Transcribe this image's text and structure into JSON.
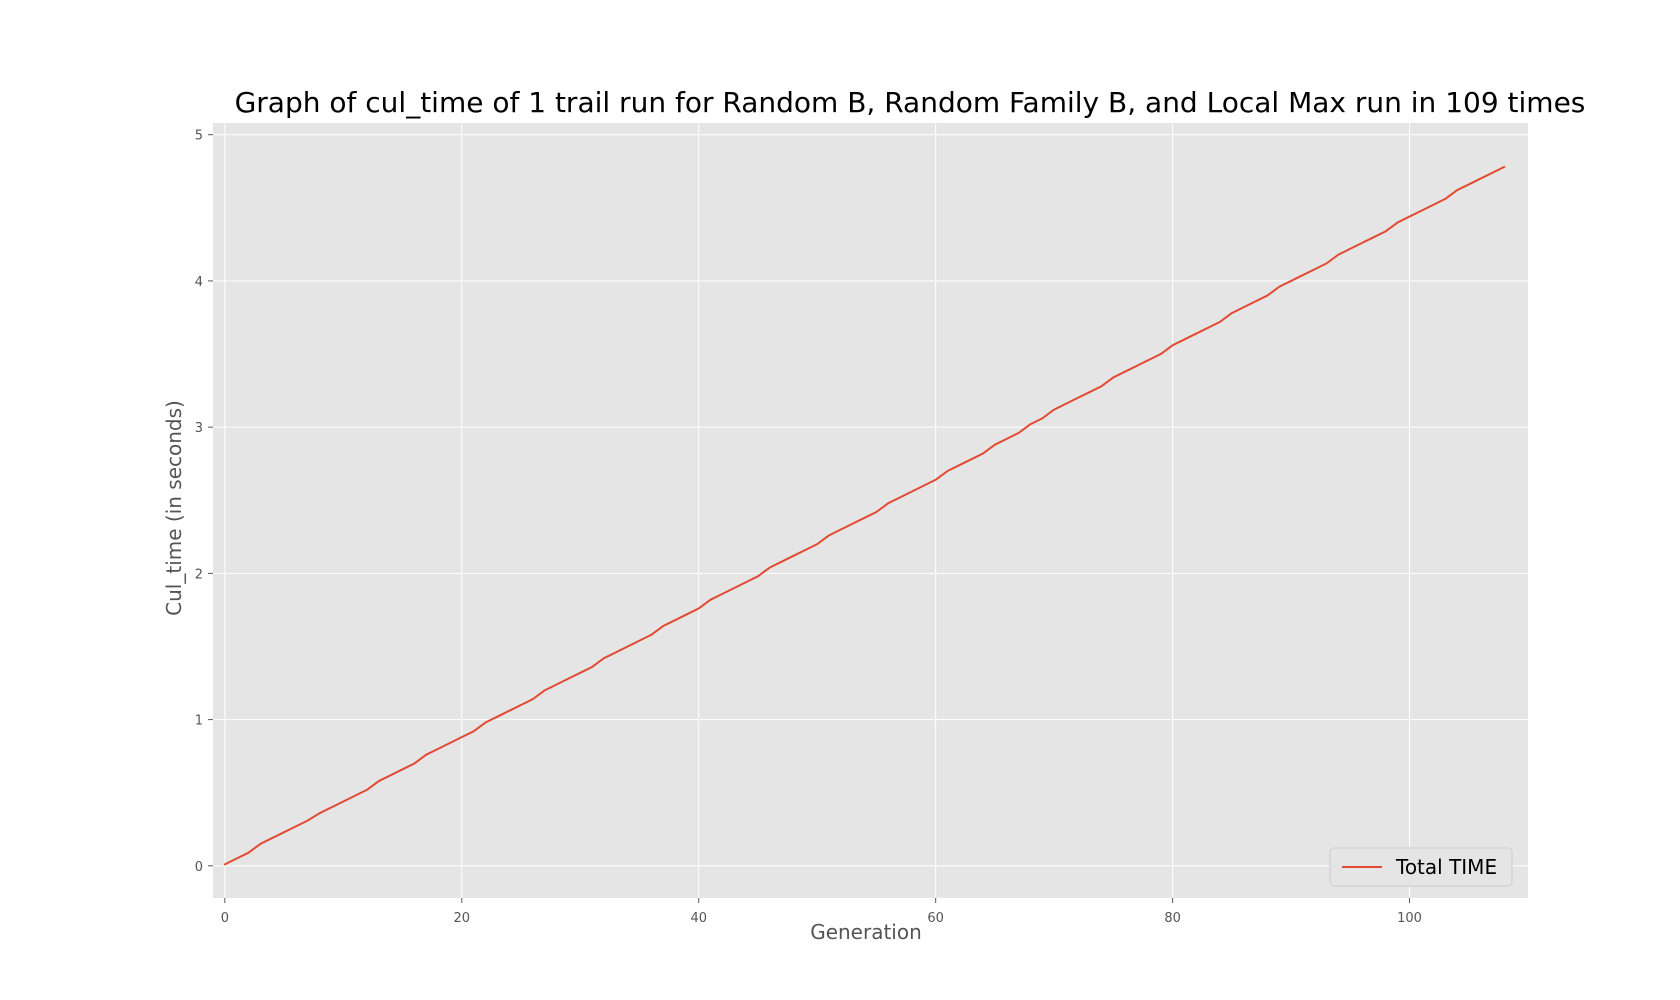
{
  "colors": {
    "plot_background": "#e5e5e5",
    "grid": "#ffffff",
    "line": "#e24a33",
    "tick": "#555555"
  },
  "chart_data": {
    "type": "line",
    "title": "Graph of cul_time of 1 trail run for Random B, Random Family B, and Local Max run in 109 times",
    "xlabel": "Generation",
    "ylabel": "Cul_time (in seconds)",
    "xlim": [
      -1,
      110
    ],
    "ylim": [
      -0.22,
      5.08
    ],
    "xticks": [
      0,
      20,
      40,
      60,
      80,
      100
    ],
    "yticks": [
      0,
      1,
      2,
      3,
      4,
      5
    ],
    "grid": true,
    "legend_position": "lower-right",
    "series": [
      {
        "name": "Total TIME",
        "x": [
          0,
          1,
          2,
          3,
          4,
          5,
          6,
          7,
          8,
          9,
          10,
          11,
          12,
          13,
          14,
          15,
          16,
          17,
          18,
          19,
          20,
          21,
          22,
          23,
          24,
          25,
          26,
          27,
          28,
          29,
          30,
          31,
          32,
          33,
          34,
          35,
          36,
          37,
          38,
          39,
          40,
          41,
          42,
          43,
          44,
          45,
          46,
          47,
          48,
          49,
          50,
          51,
          52,
          53,
          54,
          55,
          56,
          57,
          58,
          59,
          60,
          61,
          62,
          63,
          64,
          65,
          66,
          67,
          68,
          69,
          70,
          71,
          72,
          73,
          74,
          75,
          76,
          77,
          78,
          79,
          80,
          81,
          82,
          83,
          84,
          85,
          86,
          87,
          88,
          89,
          90,
          91,
          92,
          93,
          94,
          95,
          96,
          97,
          98,
          99,
          100,
          101,
          102,
          103,
          104,
          105,
          106,
          107,
          108
        ],
        "y": [
          0.01,
          0.05,
          0.09,
          0.15,
          0.19,
          0.23,
          0.27,
          0.31,
          0.36,
          0.4,
          0.44,
          0.48,
          0.52,
          0.58,
          0.62,
          0.66,
          0.7,
          0.76,
          0.8,
          0.84,
          0.88,
          0.92,
          0.98,
          1.02,
          1.06,
          1.1,
          1.14,
          1.2,
          1.24,
          1.28,
          1.32,
          1.36,
          1.42,
          1.46,
          1.5,
          1.54,
          1.58,
          1.64,
          1.68,
          1.72,
          1.76,
          1.82,
          1.86,
          1.9,
          1.94,
          1.98,
          2.04,
          2.08,
          2.12,
          2.16,
          2.2,
          2.26,
          2.3,
          2.34,
          2.38,
          2.42,
          2.48,
          2.52,
          2.56,
          2.6,
          2.64,
          2.7,
          2.74,
          2.78,
          2.82,
          2.88,
          2.92,
          2.96,
          3.02,
          3.06,
          3.12,
          3.16,
          3.2,
          3.24,
          3.28,
          3.34,
          3.38,
          3.42,
          3.46,
          3.5,
          3.56,
          3.6,
          3.64,
          3.68,
          3.72,
          3.78,
          3.82,
          3.86,
          3.9,
          3.96,
          4.0,
          4.04,
          4.08,
          4.12,
          4.18,
          4.22,
          4.26,
          4.3,
          4.34,
          4.4,
          4.44,
          4.48,
          4.52,
          4.56,
          4.62,
          4.66,
          4.7,
          4.74,
          4.78
        ]
      }
    ]
  }
}
